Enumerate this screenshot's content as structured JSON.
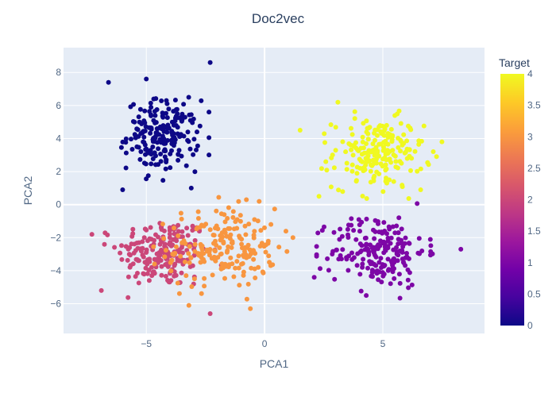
{
  "chart_data": {
    "type": "scatter",
    "title": "Doc2vec",
    "xlabel": "PCA1",
    "ylabel": "PCA2",
    "xlim": [
      -8.5,
      9.3
    ],
    "ylim": [
      -7.8,
      9.5
    ],
    "x_ticks": [
      -5,
      0,
      5
    ],
    "x_tick_labels": [
      "−5",
      "0",
      "5"
    ],
    "y_ticks": [
      -6,
      -4,
      -2,
      0,
      2,
      4,
      6,
      8
    ],
    "y_tick_labels": [
      "−6",
      "−4",
      "−2",
      "0",
      "2",
      "4",
      "6",
      "8"
    ],
    "grid": true,
    "colorbar": {
      "title": "Target",
      "range": [
        0,
        4
      ],
      "ticks": [
        0,
        0.5,
        1,
        1.5,
        2,
        2.5,
        3,
        3.5,
        4
      ],
      "tick_labels": [
        "0",
        "0.5",
        "1",
        "1.5",
        "2",
        "2.5",
        "3",
        "3.5",
        "4"
      ],
      "colorscale": [
        "#0d0887",
        "#46039f",
        "#7201a8",
        "#9c179e",
        "#bd3786",
        "#d8576b",
        "#ed7953",
        "#fb9f3a",
        "#fdca26",
        "#f0f921"
      ]
    },
    "clusters": [
      {
        "target": 0,
        "center": [
          -4.3,
          4.2
        ],
        "std": [
          0.75,
          1.05
        ],
        "count": 200,
        "extra_points": [
          [
            -6.6,
            7.4
          ],
          [
            -2.3,
            8.6
          ],
          [
            -5.0,
            7.6
          ],
          [
            -6.0,
            0.9
          ],
          [
            -3.1,
            1.0
          ]
        ]
      },
      {
        "target": 1,
        "center": [
          4.8,
          -2.8
        ],
        "std": [
          1.0,
          1.1
        ],
        "count": 200,
        "extra_points": [
          [
            8.3,
            -2.7
          ],
          [
            2.1,
            -4.4
          ],
          [
            4.3,
            -5.5
          ]
        ]
      },
      {
        "target": 2,
        "center": [
          -4.3,
          -2.9
        ],
        "std": [
          0.95,
          1.05
        ],
        "count": 200,
        "extra_points": [
          [
            -7.3,
            -1.8
          ],
          [
            -6.9,
            -5.2
          ],
          [
            -2.3,
            -6.6
          ],
          [
            -3.0,
            -4.8
          ]
        ]
      },
      {
        "target": 3,
        "center": [
          -1.8,
          -2.6
        ],
        "std": [
          1.15,
          1.2
        ],
        "count": 200,
        "extra_points": [
          [
            -3.2,
            -6.1
          ],
          [
            -0.6,
            -6.3
          ],
          [
            1.2,
            -2.0
          ]
        ]
      },
      {
        "target": 4,
        "center": [
          4.8,
          3.1
        ],
        "std": [
          0.95,
          1.05
        ],
        "count": 200,
        "extra_points": [
          [
            1.5,
            4.5
          ],
          [
            7.5,
            3.8
          ],
          [
            3.1,
            6.2
          ],
          [
            2.3,
            0.5
          ],
          [
            6.6,
            0.9
          ]
        ]
      }
    ]
  }
}
